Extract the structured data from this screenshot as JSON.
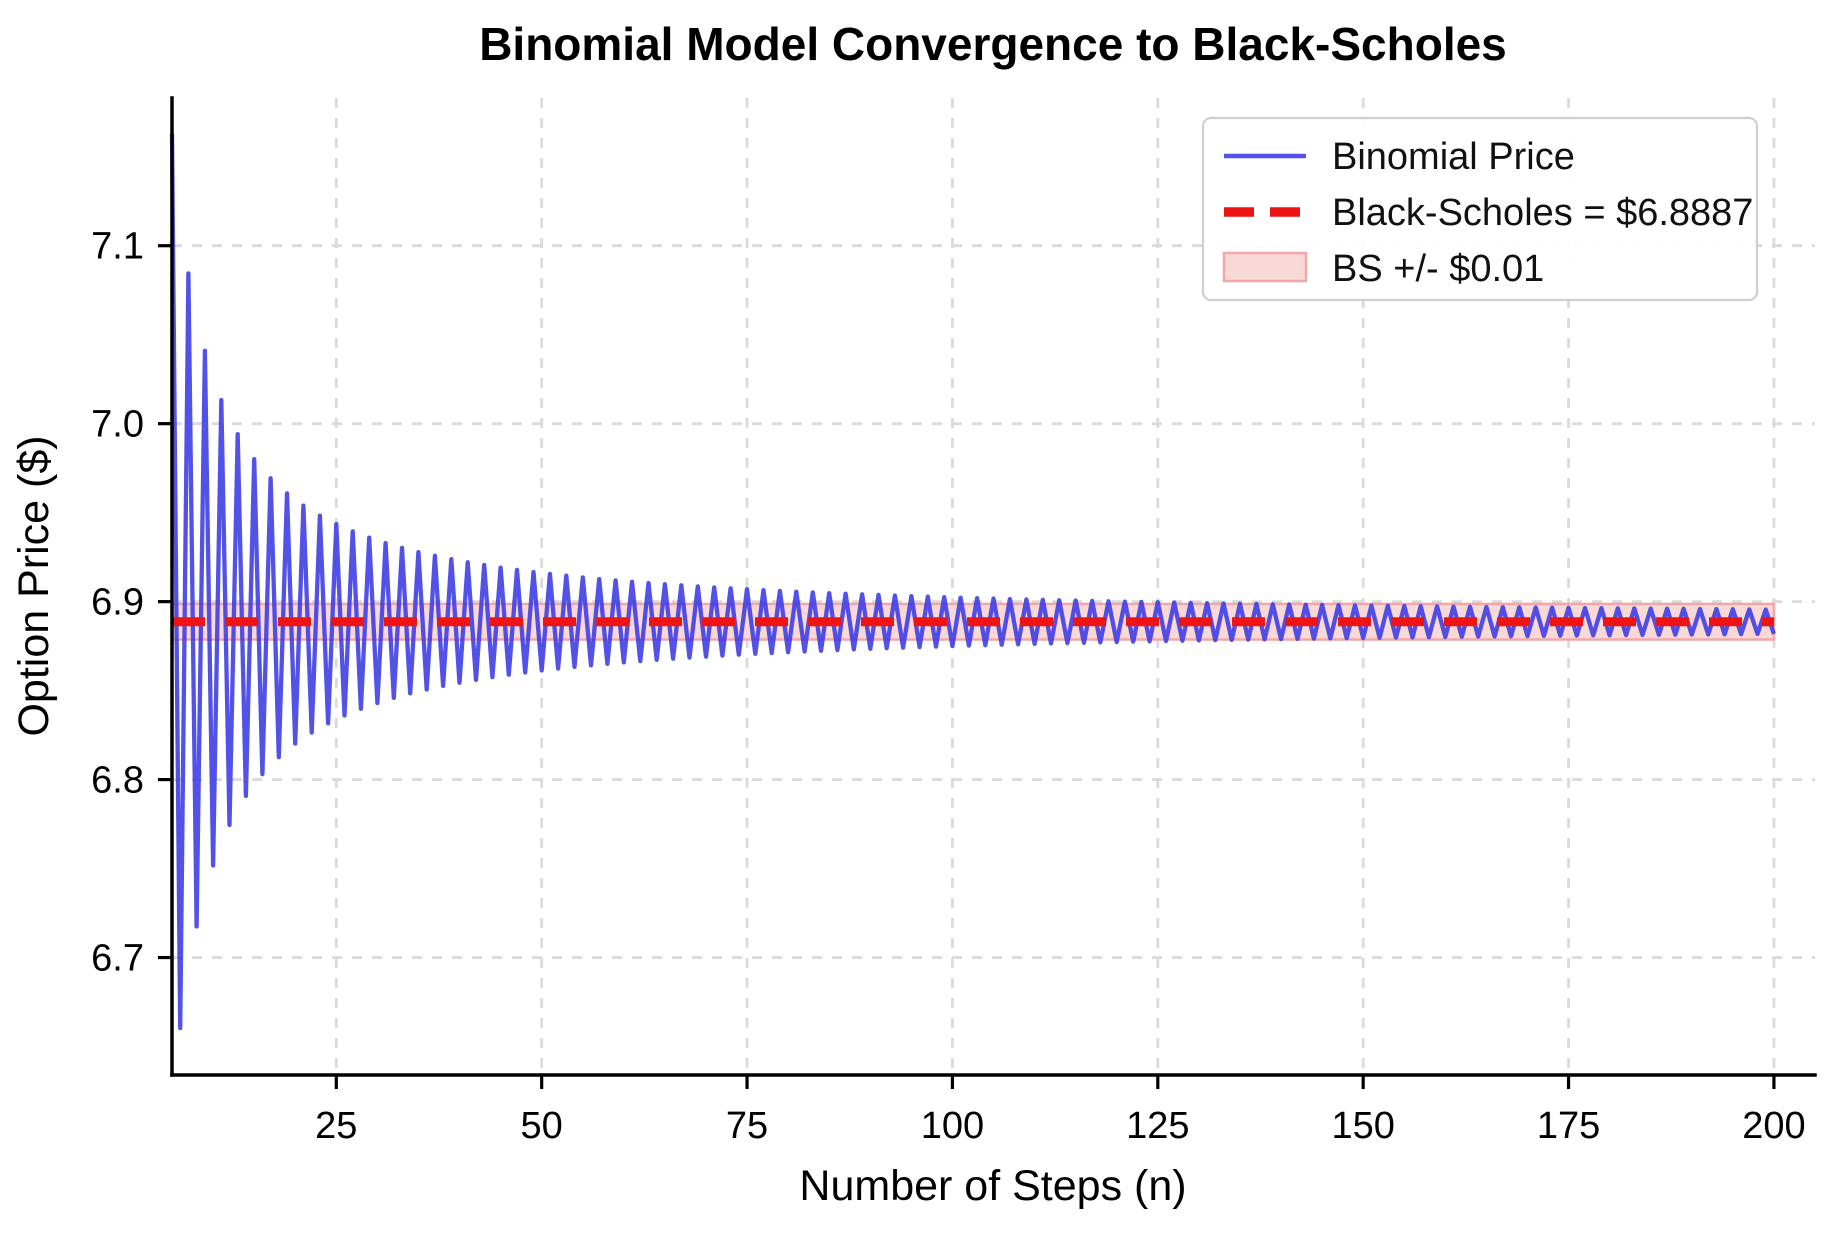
{
  "chart_data": {
    "type": "line",
    "title": "Binomial Model Convergence to Black-Scholes",
    "xlabel": "Number of Steps (n)",
    "ylabel": "Option Price ($)",
    "xlim": [
      5,
      205
    ],
    "ylim": [
      6.634,
      7.183
    ],
    "x_ticks": [
      25,
      50,
      75,
      100,
      125,
      150,
      175,
      200
    ],
    "x_tick_labels": [
      "25",
      "50",
      "75",
      "100",
      "125",
      "150",
      "175",
      "200"
    ],
    "y_ticks": [
      6.7,
      6.8,
      6.9,
      7.0,
      7.1
    ],
    "y_tick_labels": [
      "6.7",
      "6.8",
      "6.9",
      "7.0",
      "7.1"
    ],
    "grid": true,
    "grid_style": "dashed",
    "legend_position": "upper right",
    "legend": [
      "Binomial Price",
      "Black-Scholes = $6.8887",
      "BS +/- $0.01"
    ],
    "series": [
      {
        "name": "Binomial Price",
        "type": "line",
        "color": "#3a3ae6",
        "opacity": 0.88,
        "x_start": 5,
        "x_end": 200,
        "step": 1,
        "bs": 6.8887,
        "osc_coeff": 1.37,
        "values_formula": "price(n) = bs + (-1)^(n+1) * osc_coeff / n (odd n above, even n below, oscillation decays ~1/n)",
        "sample_values": [
          [
            5,
            7.1627
          ],
          [
            6,
            6.6604
          ],
          [
            7,
            7.0844
          ],
          [
            8,
            6.7175
          ],
          [
            9,
            7.0409
          ],
          [
            10,
            6.7517
          ],
          [
            15,
            6.98
          ],
          [
            20,
            6.8202
          ],
          [
            25,
            6.9435
          ],
          [
            50,
            6.8613
          ],
          [
            75,
            6.907
          ],
          [
            100,
            6.875
          ],
          [
            125,
            6.8997
          ],
          [
            150,
            6.8796
          ],
          [
            175,
            6.8965
          ],
          [
            200,
            6.8819
          ]
        ]
      },
      {
        "name": "Black-Scholes = $6.8887",
        "type": "hline",
        "y": 6.8887,
        "color": "#ee1414",
        "style": "dashed"
      },
      {
        "name": "BS +/- $0.01",
        "type": "band",
        "y_low": 6.8787,
        "y_high": 6.8987,
        "fill": "#f9d8d8",
        "edge": "#f3a6a6"
      }
    ],
    "black_scholes_price": 6.8887,
    "band_halfwidth": 0.01
  },
  "colors": {
    "binomial_line": "#3a3ae6",
    "black_scholes_line": "#ee1414",
    "band_fill": "#f9d8d8",
    "band_edge": "#f3a6a6",
    "gridline": "#dbdbdb",
    "spine": "#000000",
    "legend_border": "#cfcfcf"
  }
}
